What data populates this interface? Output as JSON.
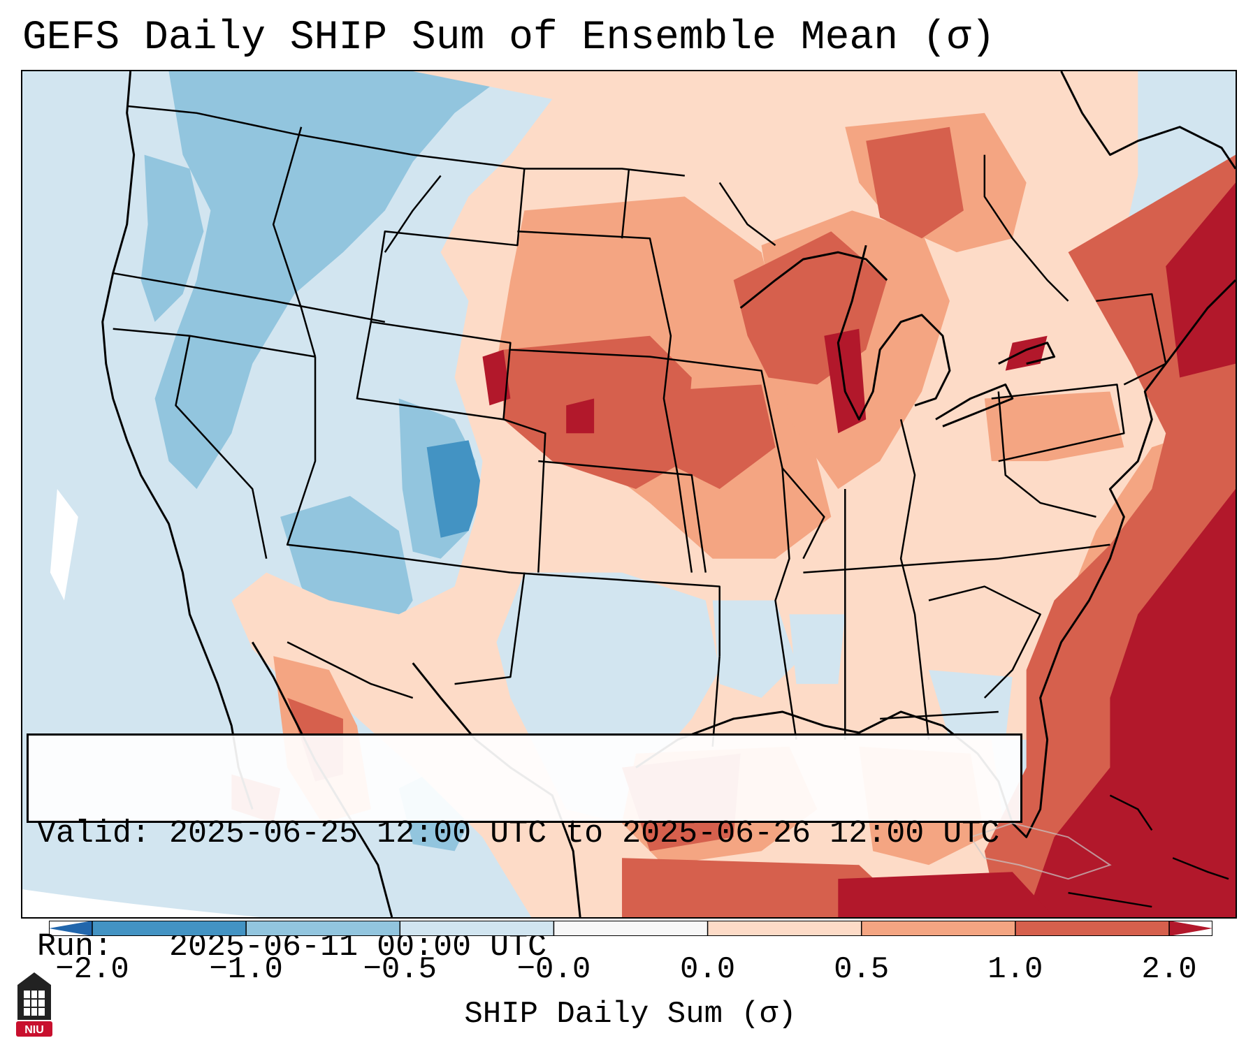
{
  "title": "GEFS Daily SHIP Sum of Ensemble Mean (σ)",
  "info": {
    "valid_line": "Valid: 2025-06-25 12:00 UTC to 2025-06-26 12:00 UTC",
    "run_line": "Run:   2025-06-11 00:00 UTC"
  },
  "colorbar": {
    "label": "SHIP Daily Sum (σ)",
    "ticks": [
      "−2.0",
      "−1.0",
      "−0.5",
      "−0.0",
      "0.0",
      "0.5",
      "1.0",
      "2.0"
    ],
    "bins": [
      {
        "range": "-2.0 to -1.0",
        "color": "#4393c3"
      },
      {
        "range": "-1.0 to -0.5",
        "color": "#92c5de"
      },
      {
        "range": "-0.5 to 0.0",
        "color": "#d1e5f0"
      },
      {
        "range": "0.0 to 0.0",
        "color": "#f7f7f7"
      },
      {
        "range": "0.0 to 0.5",
        "color": "#fddbc7"
      },
      {
        "range": "0.5 to 1.0",
        "color": "#f4a582"
      },
      {
        "range": "1.0 to 2.0",
        "color": "#d6604d"
      }
    ],
    "under_color": "#2166ac",
    "over_color": "#b2182b"
  },
  "logo": {
    "text": "NIU",
    "color": "#c8102e"
  }
}
